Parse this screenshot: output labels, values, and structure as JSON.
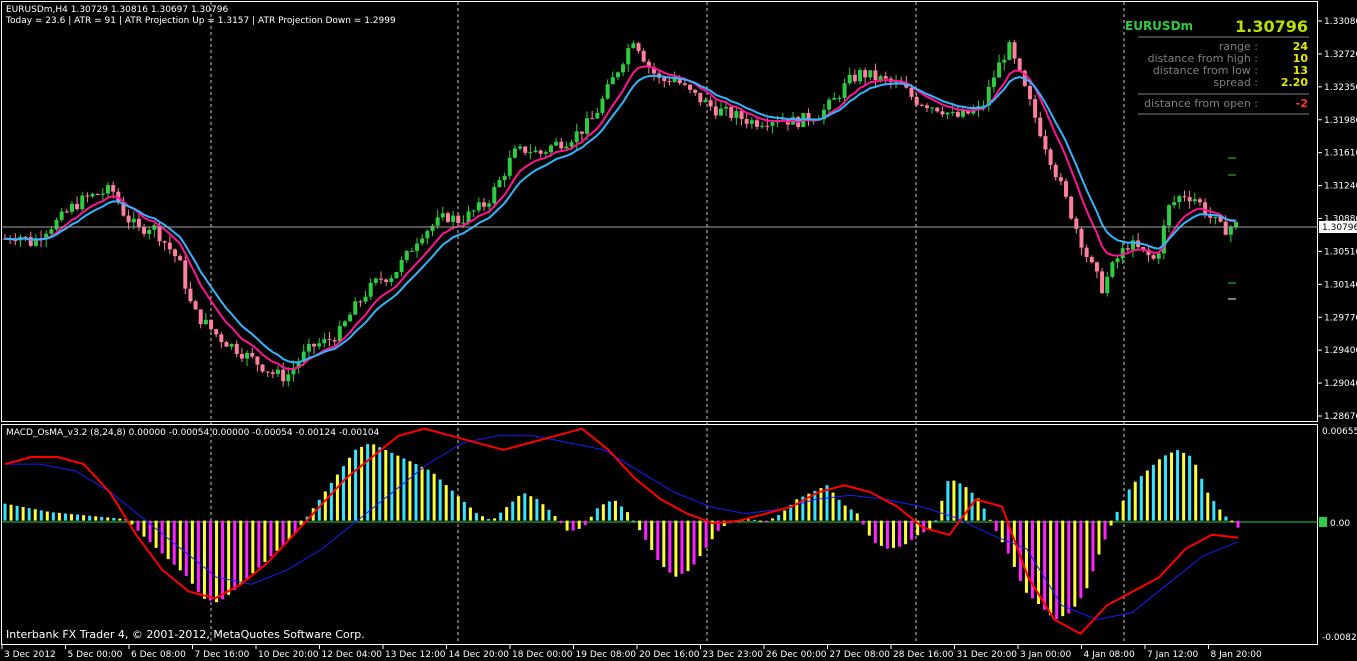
{
  "header": {
    "symbol_line": "EURUSDm,H4  1.30729 1.30816 1.30697 1.30796",
    "indicators_line": "Today = 23.6    |    ATR = 91    |    ATR Projection Up = 1.3157    |    ATR Projection Down = 1.2999"
  },
  "info_panel": {
    "symbol": "EURUSDm",
    "price": "1.30796",
    "rows": [
      {
        "label": "range :",
        "value": "24"
      },
      {
        "label": "distance from high :",
        "value": "10"
      },
      {
        "label": "distance from low :",
        "value": "13"
      },
      {
        "label": "spread :",
        "value": "2.20"
      }
    ],
    "open_label": "distance from open :",
    "open_value": "-2"
  },
  "price_axis": {
    "labels": [
      "1.33080",
      "1.32720",
      "1.32350",
      "1.31980",
      "1.31610",
      "1.31240",
      "1.30880",
      "1.30510",
      "1.30140",
      "1.29770",
      "1.29400",
      "1.29040",
      "1.28670"
    ],
    "current_price_label": "1.30796"
  },
  "macd_panel": {
    "title": "MACD_OsMA_v3.2 (8,24,8) 0.00000 -0.00054 0.00000 -0.00054 -0.00124 -0.00104",
    "axis_labels": [
      "0.00655",
      "0.00",
      "-0.00823"
    ],
    "zero_label": "0.00"
  },
  "time_axis": {
    "labels": [
      "3 Dec 2012",
      "5 Dec 00:00",
      "6 Dec 08:00",
      "7 Dec 16:00",
      "10 Dec 20:00",
      "12 Dec 04:00",
      "13 Dec 12:00",
      "14 Dec 20:00",
      "18 Dec 00:00",
      "19 Dec 08:00",
      "20 Dec 16:00",
      "23 Dec 23:00",
      "26 Dec 00:00",
      "27 Dec 08:00",
      "28 Dec 16:00",
      "31 Dec 20:00",
      "3 Jan 00:00",
      "4 Jan 08:00",
      "7 Jan 12:00",
      "8 Jan 20:00"
    ]
  },
  "footer": {
    "copyright": "Interbank FX Trader 4, © 2001-2012, MetaQuotes Software Corp."
  },
  "colors": {
    "bull": "#2ecc40",
    "bear": "#ff7f9f",
    "ma_fast": "#ff1493",
    "ma_slow": "#33b5ff",
    "hist_pos_a": "#33e6ff",
    "hist_pos_b": "#ffff33",
    "hist_neg_a": "#ff22ff",
    "hist_neg_b": "#ffff33",
    "signal_red": "#ff0000",
    "signal_blue": "#1a1aff"
  },
  "chart_data": [
    {
      "type": "candlestick",
      "title": "EURUSDm,H4",
      "ylim": [
        1.2867,
        1.3308
      ],
      "close_path": [
        1.3065,
        1.307,
        1.306,
        1.3075,
        1.3085,
        1.31,
        1.311,
        1.3115,
        1.312,
        1.309,
        1.3075,
        1.308,
        1.306,
        1.304,
        1.2985,
        1.297,
        1.2955,
        1.2945,
        1.2935,
        1.2925,
        1.2915,
        1.291,
        1.293,
        1.2945,
        1.295,
        1.296,
        1.2985,
        1.3005,
        1.302,
        1.3025,
        1.3045,
        1.307,
        1.308,
        1.309,
        1.3085,
        1.3095,
        1.3105,
        1.313,
        1.316,
        1.3165,
        1.316,
        1.317,
        1.3175,
        1.3185,
        1.32,
        1.323,
        1.326,
        1.329,
        1.326,
        1.324,
        1.3245,
        1.323,
        1.322,
        1.321,
        1.3205,
        1.32,
        1.3195,
        1.3198,
        1.32,
        1.3195,
        1.32,
        1.3205,
        1.322,
        1.324,
        1.325,
        1.3245,
        1.324,
        1.3235,
        1.322,
        1.3215,
        1.321,
        1.32,
        1.3205,
        1.321,
        1.325,
        1.328,
        1.324,
        1.32,
        1.316,
        1.312,
        1.308,
        1.304,
        1.301,
        1.304,
        1.306,
        1.305,
        1.304,
        1.31,
        1.3115,
        1.311,
        1.309,
        1.3075,
        1.308
      ],
      "moving_averages": [
        "fast (magenta)",
        "slow (blue)"
      ],
      "last_price": 1.30796
    },
    {
      "type": "bar",
      "title": "MACD_OsMA_v3.2 (8,24,8)",
      "ylim": [
        -0.00823,
        0.00655
      ],
      "values": [
        0.0012,
        0.001,
        0.0008,
        0.0006,
        0.0005,
        0.0004,
        0.0003,
        0.0002,
        0.0001,
        -0.001,
        -0.002,
        -0.003,
        -0.004,
        -0.0055,
        -0.0058,
        -0.005,
        -0.004,
        -0.003,
        -0.002,
        -0.001,
        0.0005,
        0.002,
        0.0035,
        0.005,
        0.0055,
        0.005,
        0.0045,
        0.004,
        0.0035,
        0.0025,
        0.0015,
        0.0005,
        0.0,
        0.001,
        0.002,
        0.0015,
        0.0005,
        -0.0008,
        -0.0005,
        0.001,
        0.0015,
        0.0005,
        -0.0012,
        -0.003,
        -0.004,
        -0.0035,
        -0.002,
        -0.0005,
        0.0,
        0.0001,
        -0.0001,
        0.0005,
        0.0015,
        0.002,
        0.0025,
        0.0012,
        0.0005,
        -0.0015,
        -0.002,
        -0.0018,
        -0.001,
        -0.0005,
        0.003,
        0.0025,
        0.0015,
        -0.0005,
        -0.0025,
        -0.005,
        -0.006,
        -0.007,
        -0.0065,
        -0.005,
        -0.002,
        0.0005,
        0.0025,
        0.0035,
        0.0045,
        0.005,
        0.0045,
        0.002,
        0.0005,
        -0.0005
      ],
      "signal_red": [
        0.004,
        0.0045,
        0.0045,
        0.004,
        0.002,
        -0.001,
        -0.0035,
        -0.005,
        -0.0055,
        -0.0045,
        -0.003,
        -0.001,
        0.001,
        0.003,
        0.0045,
        0.006,
        0.0065,
        0.006,
        0.0055,
        0.005,
        0.0055,
        0.006,
        0.0065,
        0.005,
        0.003,
        0.0015,
        0.0005,
        -0.0002,
        0.0,
        0.0005,
        0.001,
        0.002,
        0.0025,
        0.002,
        0.001,
        -0.0005,
        -0.001,
        0.0015,
        0.001,
        -0.004,
        -0.007,
        -0.008,
        -0.006,
        -0.005,
        -0.004,
        -0.002,
        -0.001,
        -0.0012
      ],
      "signal_blue": [
        0.004,
        0.004,
        0.0035,
        0.002,
        0.0,
        -0.002,
        -0.004,
        -0.0045,
        -0.0035,
        -0.002,
        0.0,
        0.002,
        0.004,
        0.0055,
        0.006,
        0.006,
        0.0055,
        0.005,
        0.0035,
        0.002,
        0.001,
        0.0005,
        0.0008,
        0.0015,
        0.0018,
        0.0015,
        0.001,
        0.0002,
        -0.001,
        -0.002,
        -0.006,
        -0.007,
        -0.0065,
        -0.0045,
        -0.0025,
        -0.0015
      ]
    }
  ]
}
